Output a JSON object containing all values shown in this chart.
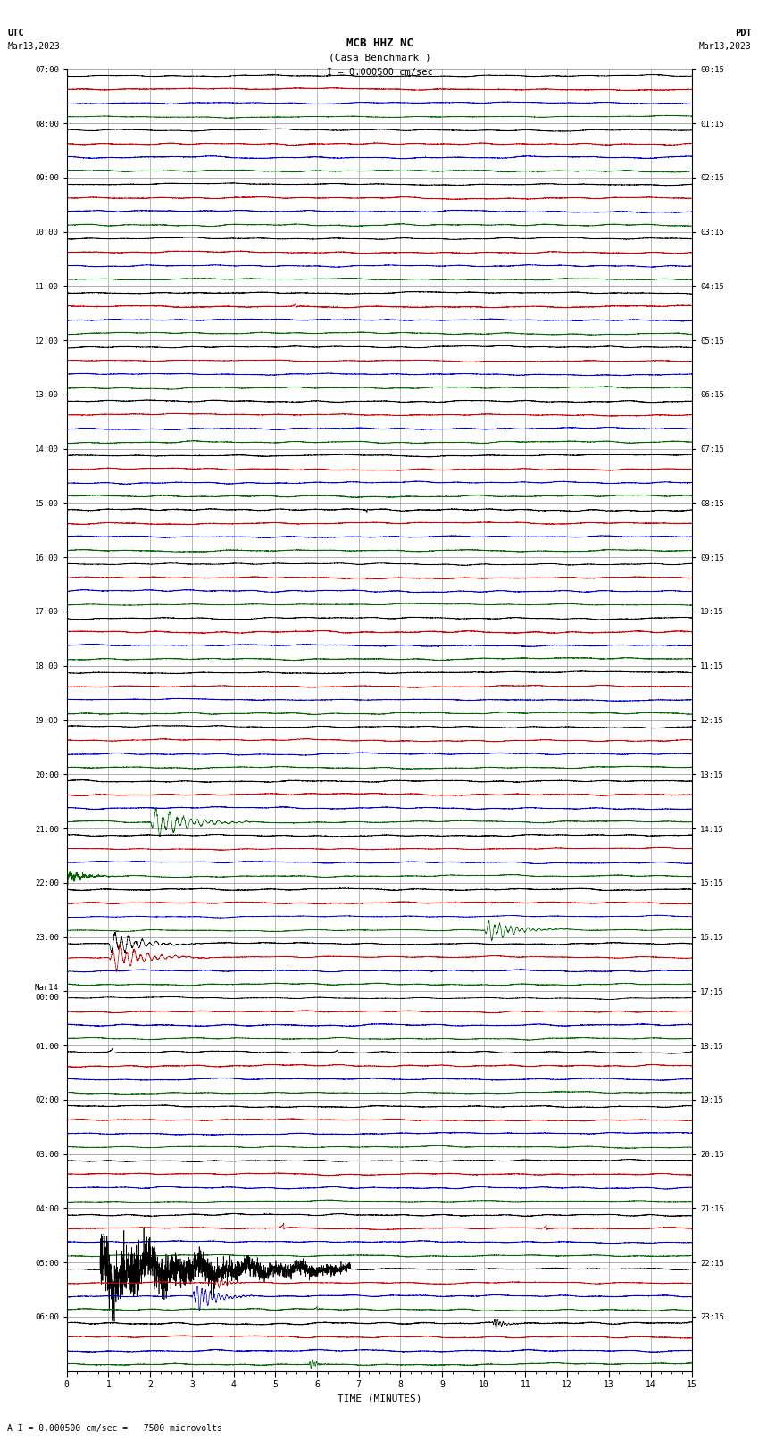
{
  "title_line1": "MCB HHZ NC",
  "title_line2": "(Casa Benchmark )",
  "scale_label": "I = 0.000500 cm/sec",
  "bottom_label": "A I = 0.000500 cm/sec =   7500 microvolts",
  "xlabel": "TIME (MINUTES)",
  "left_times": [
    "07:00",
    "08:00",
    "09:00",
    "10:00",
    "11:00",
    "12:00",
    "13:00",
    "14:00",
    "15:00",
    "16:00",
    "17:00",
    "18:00",
    "19:00",
    "20:00",
    "21:00",
    "22:00",
    "23:00",
    "Mar14\n00:00",
    "01:00",
    "02:00",
    "03:00",
    "04:00",
    "05:00",
    "06:00"
  ],
  "right_times": [
    "00:15",
    "01:15",
    "02:15",
    "03:15",
    "04:15",
    "05:15",
    "06:15",
    "07:15",
    "08:15",
    "09:15",
    "10:15",
    "11:15",
    "12:15",
    "13:15",
    "14:15",
    "15:15",
    "16:15",
    "17:15",
    "18:15",
    "19:15",
    "20:15",
    "21:15",
    "22:15",
    "23:15"
  ],
  "n_rows": 24,
  "traces_per_row": 4,
  "minutes": 15,
  "bg_color": "#ffffff",
  "grid_color": "#888888",
  "trace_colors": [
    "#000000",
    "#cc0000",
    "#0000cc",
    "#006600"
  ],
  "line_width": 0.5,
  "noise_amp": 0.3
}
